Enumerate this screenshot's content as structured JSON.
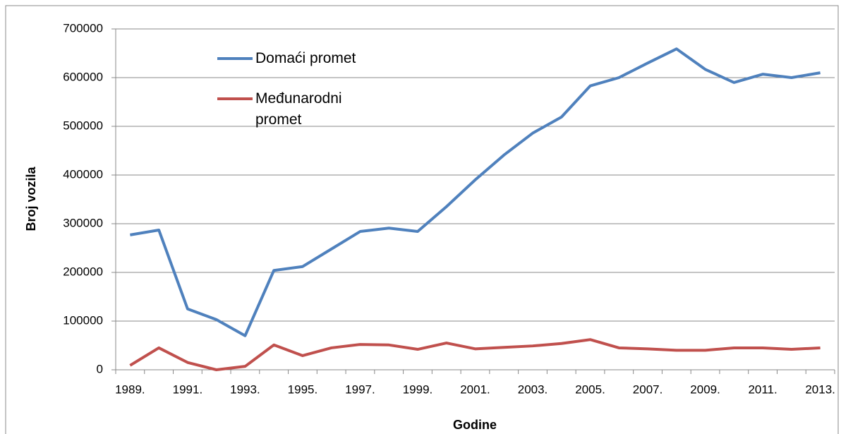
{
  "chart_data": {
    "type": "line",
    "x_label": "Godine",
    "y_label": "Broj vozila",
    "categories": [
      "1989.",
      null,
      "1991.",
      null,
      "1993.",
      null,
      "1995.",
      null,
      "1997.",
      null,
      "1999.",
      null,
      "2001.",
      null,
      "2003.",
      null,
      "2005.",
      null,
      "2007.",
      null,
      "2009.",
      null,
      "2011.",
      null,
      "2013."
    ],
    "series": [
      {
        "name": "Domaći promet",
        "color": "#4f81bd",
        "values": [
          277000,
          287000,
          125000,
          103000,
          70000,
          204000,
          212000,
          248000,
          284000,
          291000,
          284000,
          335000,
          390000,
          441000,
          486000,
          519000,
          583000,
          600000,
          630000,
          659000,
          617000,
          590000,
          607000,
          600000,
          610000
        ]
      },
      {
        "name": "Međunarodni promet",
        "color": "#c0504d",
        "values": [
          9000,
          45000,
          15000,
          0,
          7000,
          51000,
          29000,
          45000,
          52000,
          51000,
          42000,
          55000,
          43000,
          46000,
          49000,
          54000,
          62000,
          45000,
          43000,
          40000,
          40000,
          45000,
          45000,
          42000,
          45000
        ]
      }
    ],
    "ylim": [
      0,
      700000
    ],
    "yticks": [
      0,
      100000,
      200000,
      300000,
      400000,
      500000,
      600000,
      700000
    ],
    "grid": true
  }
}
